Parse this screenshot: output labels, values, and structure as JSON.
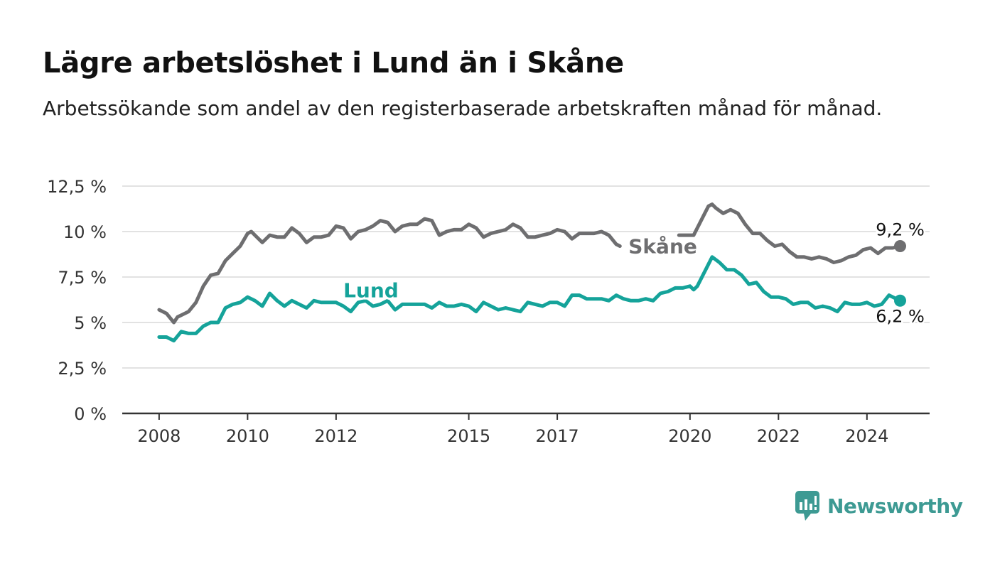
{
  "header": {
    "title": "Lägre arbetslöshet i Lund än i Skåne",
    "subtitle": "Arbetssökande som andel av den registerbaserade arbetskraften månad för månad."
  },
  "chart_data": {
    "type": "line",
    "title": "Lägre arbetslöshet i Lund än i Skåne",
    "subtitle": "Arbetssökande som andel av den registerbaserade arbetskraften månad för månad.",
    "xlabel": "",
    "ylabel": "",
    "ylim": [
      0,
      12.5
    ],
    "xlim": [
      "2007-03",
      "2025-06"
    ],
    "yticks": [
      {
        "value": 0,
        "label": "0 %"
      },
      {
        "value": 2.5,
        "label": "2,5 %"
      },
      {
        "value": 5,
        "label": "5 %"
      },
      {
        "value": 7.5,
        "label": "7,5 %"
      },
      {
        "value": 10,
        "label": "10 %"
      },
      {
        "value": 12.5,
        "label": "12,5 %"
      }
    ],
    "xticks": [
      {
        "value": "2008-01",
        "label": "2008"
      },
      {
        "value": "2010-01",
        "label": "2010"
      },
      {
        "value": "2012-01",
        "label": "2012"
      },
      {
        "value": "2015-01",
        "label": "2015"
      },
      {
        "value": "2017-01",
        "label": "2017"
      },
      {
        "value": "2020-01",
        "label": "2020"
      },
      {
        "value": "2022-01",
        "label": "2022"
      },
      {
        "value": "2024-01",
        "label": "2024"
      }
    ],
    "grid": true,
    "legend": "inline labels",
    "series": [
      {
        "name": "Skåne",
        "color": "#6e6e70",
        "end_label": "9,2 %",
        "points": [
          [
            "2008-01",
            5.7
          ],
          [
            "2008-03",
            5.5
          ],
          [
            "2008-05",
            5.0
          ],
          [
            "2008-06",
            5.3
          ],
          [
            "2008-09",
            5.6
          ],
          [
            "2008-11",
            6.1
          ],
          [
            "2009-01",
            7.0
          ],
          [
            "2009-03",
            7.6
          ],
          [
            "2009-05",
            7.7
          ],
          [
            "2009-07",
            8.4
          ],
          [
            "2009-09",
            8.8
          ],
          [
            "2009-11",
            9.2
          ],
          [
            "2010-01",
            9.9
          ],
          [
            "2010-02",
            10.0
          ],
          [
            "2010-03",
            9.8
          ],
          [
            "2010-05",
            9.4
          ],
          [
            "2010-07",
            9.8
          ],
          [
            "2010-09",
            9.7
          ],
          [
            "2010-11",
            9.7
          ],
          [
            "2011-01",
            10.2
          ],
          [
            "2011-03",
            9.9
          ],
          [
            "2011-05",
            9.4
          ],
          [
            "2011-07",
            9.7
          ],
          [
            "2011-09",
            9.7
          ],
          [
            "2011-11",
            9.8
          ],
          [
            "2012-01",
            10.3
          ],
          [
            "2012-03",
            10.2
          ],
          [
            "2012-05",
            9.6
          ],
          [
            "2012-07",
            10.0
          ],
          [
            "2012-09",
            10.1
          ],
          [
            "2012-11",
            10.3
          ],
          [
            "2013-01",
            10.6
          ],
          [
            "2013-03",
            10.5
          ],
          [
            "2013-05",
            10.0
          ],
          [
            "2013-07",
            10.3
          ],
          [
            "2013-09",
            10.4
          ],
          [
            "2013-11",
            10.4
          ],
          [
            "2014-01",
            10.7
          ],
          [
            "2014-03",
            10.6
          ],
          [
            "2014-05",
            9.8
          ],
          [
            "2014-07",
            10.0
          ],
          [
            "2014-09",
            10.1
          ],
          [
            "2014-11",
            10.1
          ],
          [
            "2015-01",
            10.4
          ],
          [
            "2015-03",
            10.2
          ],
          [
            "2015-05",
            9.7
          ],
          [
            "2015-07",
            9.9
          ],
          [
            "2015-09",
            10.0
          ],
          [
            "2015-11",
            10.1
          ],
          [
            "2016-01",
            10.4
          ],
          [
            "2016-03",
            10.2
          ],
          [
            "2016-05",
            9.7
          ],
          [
            "2016-07",
            9.7
          ],
          [
            "2016-09",
            9.8
          ],
          [
            "2016-11",
            9.9
          ],
          [
            "2017-01",
            10.1
          ],
          [
            "2017-03",
            10.0
          ],
          [
            "2017-05",
            9.6
          ],
          [
            "2017-07",
            9.9
          ],
          [
            "2017-09",
            9.9
          ],
          [
            "2017-11",
            9.9
          ],
          [
            "2018-01",
            10.0
          ],
          [
            "2018-03",
            9.8
          ],
          [
            "2018-05",
            9.3
          ],
          [
            "2018-06",
            9.2
          ],
          [
            "2019-10",
            9.8
          ],
          [
            "2019-12",
            9.8
          ],
          [
            "2020-02",
            9.8
          ],
          [
            "2020-03",
            10.2
          ],
          [
            "2020-05",
            11.0
          ],
          [
            "2020-06",
            11.4
          ],
          [
            "2020-07",
            11.5
          ],
          [
            "2020-08",
            11.3
          ],
          [
            "2020-10",
            11.0
          ],
          [
            "2020-12",
            11.2
          ],
          [
            "2021-02",
            11.0
          ],
          [
            "2021-04",
            10.4
          ],
          [
            "2021-06",
            9.9
          ],
          [
            "2021-08",
            9.9
          ],
          [
            "2021-10",
            9.5
          ],
          [
            "2021-12",
            9.2
          ],
          [
            "2022-02",
            9.3
          ],
          [
            "2022-04",
            8.9
          ],
          [
            "2022-06",
            8.6
          ],
          [
            "2022-08",
            8.6
          ],
          [
            "2022-10",
            8.5
          ],
          [
            "2022-12",
            8.6
          ],
          [
            "2023-02",
            8.5
          ],
          [
            "2023-04",
            8.3
          ],
          [
            "2023-06",
            8.4
          ],
          [
            "2023-08",
            8.6
          ],
          [
            "2023-10",
            8.7
          ],
          [
            "2023-12",
            9.0
          ],
          [
            "2024-02",
            9.1
          ],
          [
            "2024-04",
            8.8
          ],
          [
            "2024-06",
            9.1
          ],
          [
            "2024-08",
            9.1
          ],
          [
            "2024-10",
            9.2
          ]
        ]
      },
      {
        "name": "Lund",
        "color": "#15a39a",
        "end_label": "6,2 %",
        "points": [
          [
            "2008-01",
            4.2
          ],
          [
            "2008-03",
            4.2
          ],
          [
            "2008-05",
            4.0
          ],
          [
            "2008-07",
            4.5
          ],
          [
            "2008-09",
            4.4
          ],
          [
            "2008-11",
            4.4
          ],
          [
            "2009-01",
            4.8
          ],
          [
            "2009-03",
            5.0
          ],
          [
            "2009-05",
            5.0
          ],
          [
            "2009-07",
            5.8
          ],
          [
            "2009-09",
            6.0
          ],
          [
            "2009-11",
            6.1
          ],
          [
            "2010-01",
            6.4
          ],
          [
            "2010-03",
            6.2
          ],
          [
            "2010-05",
            5.9
          ],
          [
            "2010-07",
            6.6
          ],
          [
            "2010-09",
            6.2
          ],
          [
            "2010-11",
            5.9
          ],
          [
            "2011-01",
            6.2
          ],
          [
            "2011-03",
            6.0
          ],
          [
            "2011-05",
            5.8
          ],
          [
            "2011-07",
            6.2
          ],
          [
            "2011-09",
            6.1
          ],
          [
            "2011-11",
            6.1
          ],
          [
            "2012-01",
            6.1
          ],
          [
            "2012-03",
            5.9
          ],
          [
            "2012-05",
            5.6
          ],
          [
            "2012-07",
            6.1
          ],
          [
            "2012-09",
            6.2
          ],
          [
            "2012-11",
            5.9
          ],
          [
            "2013-01",
            6.0
          ],
          [
            "2013-03",
            6.2
          ],
          [
            "2013-05",
            5.7
          ],
          [
            "2013-07",
            6.0
          ],
          [
            "2013-09",
            6.0
          ],
          [
            "2013-11",
            6.0
          ],
          [
            "2014-01",
            6.0
          ],
          [
            "2014-03",
            5.8
          ],
          [
            "2014-05",
            6.1
          ],
          [
            "2014-07",
            5.9
          ],
          [
            "2014-09",
            5.9
          ],
          [
            "2014-11",
            6.0
          ],
          [
            "2015-01",
            5.9
          ],
          [
            "2015-03",
            5.6
          ],
          [
            "2015-05",
            6.1
          ],
          [
            "2015-07",
            5.9
          ],
          [
            "2015-09",
            5.7
          ],
          [
            "2015-11",
            5.8
          ],
          [
            "2016-01",
            5.7
          ],
          [
            "2016-03",
            5.6
          ],
          [
            "2016-05",
            6.1
          ],
          [
            "2016-07",
            6.0
          ],
          [
            "2016-09",
            5.9
          ],
          [
            "2016-11",
            6.1
          ],
          [
            "2017-01",
            6.1
          ],
          [
            "2017-03",
            5.9
          ],
          [
            "2017-05",
            6.5
          ],
          [
            "2017-07",
            6.5
          ],
          [
            "2017-09",
            6.3
          ],
          [
            "2017-11",
            6.3
          ],
          [
            "2018-01",
            6.3
          ],
          [
            "2018-03",
            6.2
          ],
          [
            "2018-05",
            6.5
          ],
          [
            "2018-07",
            6.3
          ],
          [
            "2018-09",
            6.2
          ],
          [
            "2018-11",
            6.2
          ],
          [
            "2019-01",
            6.3
          ],
          [
            "2019-03",
            6.2
          ],
          [
            "2019-05",
            6.6
          ],
          [
            "2019-07",
            6.7
          ],
          [
            "2019-09",
            6.9
          ],
          [
            "2019-11",
            6.9
          ],
          [
            "2020-01",
            7.0
          ],
          [
            "2020-02",
            6.8
          ],
          [
            "2020-03",
            7.0
          ],
          [
            "2020-05",
            7.8
          ],
          [
            "2020-07",
            8.6
          ],
          [
            "2020-09",
            8.3
          ],
          [
            "2020-11",
            7.9
          ],
          [
            "2021-01",
            7.9
          ],
          [
            "2021-03",
            7.6
          ],
          [
            "2021-05",
            7.1
          ],
          [
            "2021-07",
            7.2
          ],
          [
            "2021-09",
            6.7
          ],
          [
            "2021-11",
            6.4
          ],
          [
            "2022-01",
            6.4
          ],
          [
            "2022-03",
            6.3
          ],
          [
            "2022-05",
            6.0
          ],
          [
            "2022-07",
            6.1
          ],
          [
            "2022-09",
            6.1
          ],
          [
            "2022-11",
            5.8
          ],
          [
            "2023-01",
            5.9
          ],
          [
            "2023-03",
            5.8
          ],
          [
            "2023-05",
            5.6
          ],
          [
            "2023-07",
            6.1
          ],
          [
            "2023-09",
            6.0
          ],
          [
            "2023-11",
            6.0
          ],
          [
            "2024-01",
            6.1
          ],
          [
            "2024-03",
            5.9
          ],
          [
            "2024-05",
            6.0
          ],
          [
            "2024-07",
            6.5
          ],
          [
            "2024-09",
            6.3
          ],
          [
            "2024-10",
            6.2
          ]
        ]
      }
    ]
  },
  "branding": {
    "logo_text": "Newsworthy",
    "logo_icon": "newsworthy-logo-icon",
    "color": "#3d9a93"
  }
}
